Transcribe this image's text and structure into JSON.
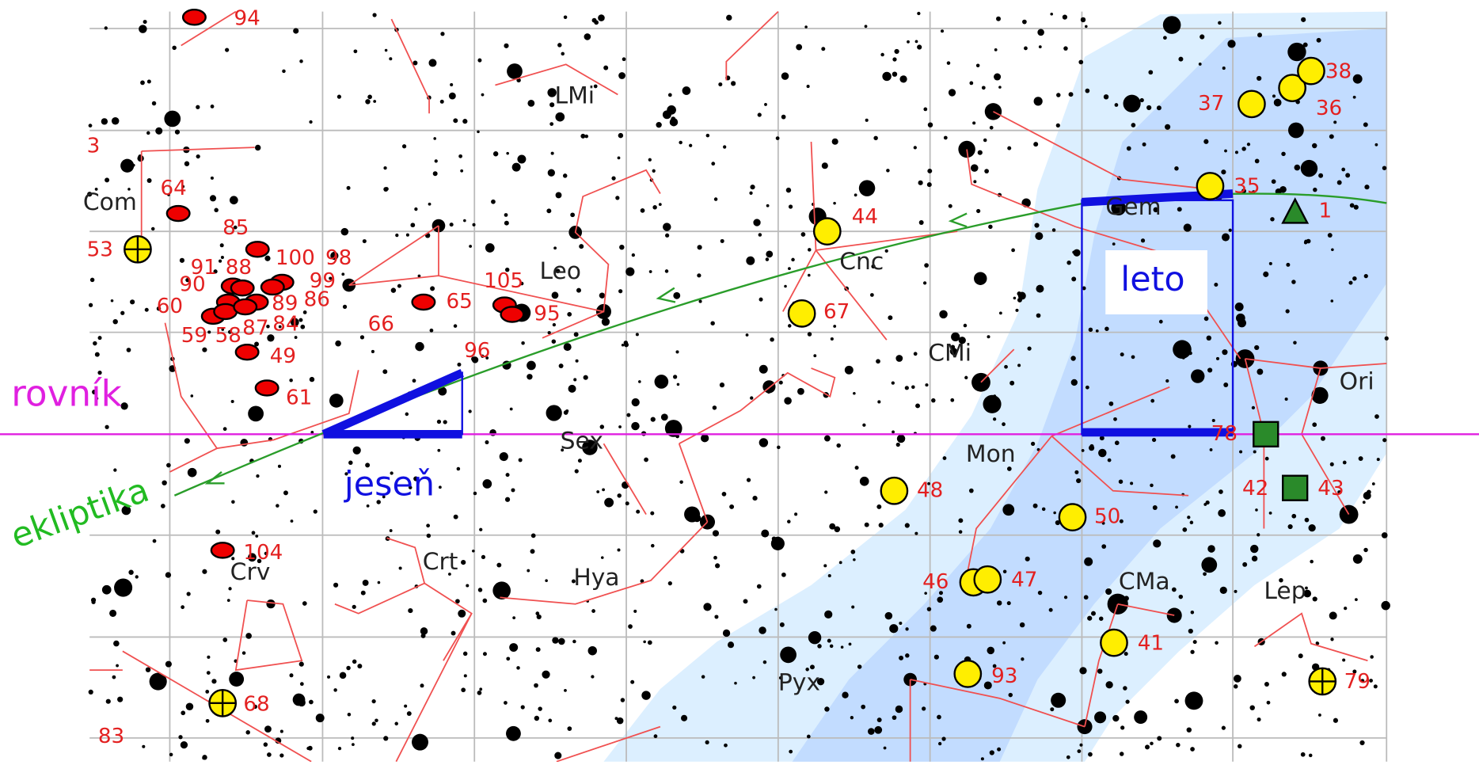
{
  "labels": {
    "equator": "rovník",
    "ecliptic": "ekliptika",
    "autumn": "jeseň",
    "summer": "leto"
  },
  "constellations": [
    "LMi",
    "Com",
    "Leo",
    "Cnc",
    "CMi",
    "Ori",
    "Sex",
    "Mon",
    "Gem",
    "Crt",
    "Hya",
    "Crv",
    "CMa",
    "Lep",
    "Pyx"
  ],
  "objects": [
    "94",
    "3",
    "53",
    "64",
    "85",
    "100",
    "98",
    "99",
    "91",
    "88",
    "90",
    "89",
    "86",
    "60",
    "59",
    "58",
    "87",
    "84",
    "49",
    "61",
    "66",
    "65",
    "105",
    "95",
    "96",
    "44",
    "67",
    "48",
    "50",
    "46",
    "47",
    "41",
    "93",
    "42",
    "43",
    "78",
    "1",
    "35",
    "37",
    "36",
    "38",
    "104",
    "68",
    "83",
    "79"
  ]
}
